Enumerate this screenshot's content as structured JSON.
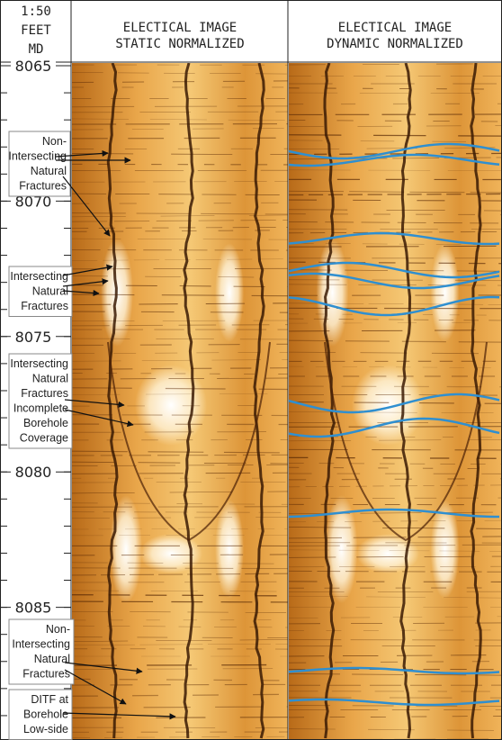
{
  "header": {
    "scale": [
      "1:50",
      "FEET",
      "MD"
    ],
    "tracks": [
      {
        "title": [
          "ELECTICAL IMAGE",
          "STATIC NORMALIZED"
        ]
      },
      {
        "title": [
          "ELECTICAL IMAGE",
          "DYNAMIC NORMALIZED"
        ]
      }
    ]
  },
  "depth": {
    "ylim": [
      8064.9,
      8089.9
    ],
    "ticks": [
      8065,
      8070,
      8075,
      8080,
      8085
    ]
  },
  "annotations": [
    {
      "lines": [
        "Non-",
        "Intersecting",
        "Natural",
        "Fractures"
      ]
    },
    {
      "lines": [
        "Intersecting",
        "Natural",
        "Fractures"
      ]
    },
    {
      "lines": [
        "Intersecting",
        "Natural",
        "Fractures",
        "Incomplete",
        "Borehole",
        "Coverage"
      ]
    },
    {
      "lines": [
        "Non-",
        "Intersecting",
        "Natural",
        "Fractures"
      ]
    },
    {
      "lines": [
        "DITF at",
        "Borehole",
        "Low-side"
      ]
    }
  ]
}
